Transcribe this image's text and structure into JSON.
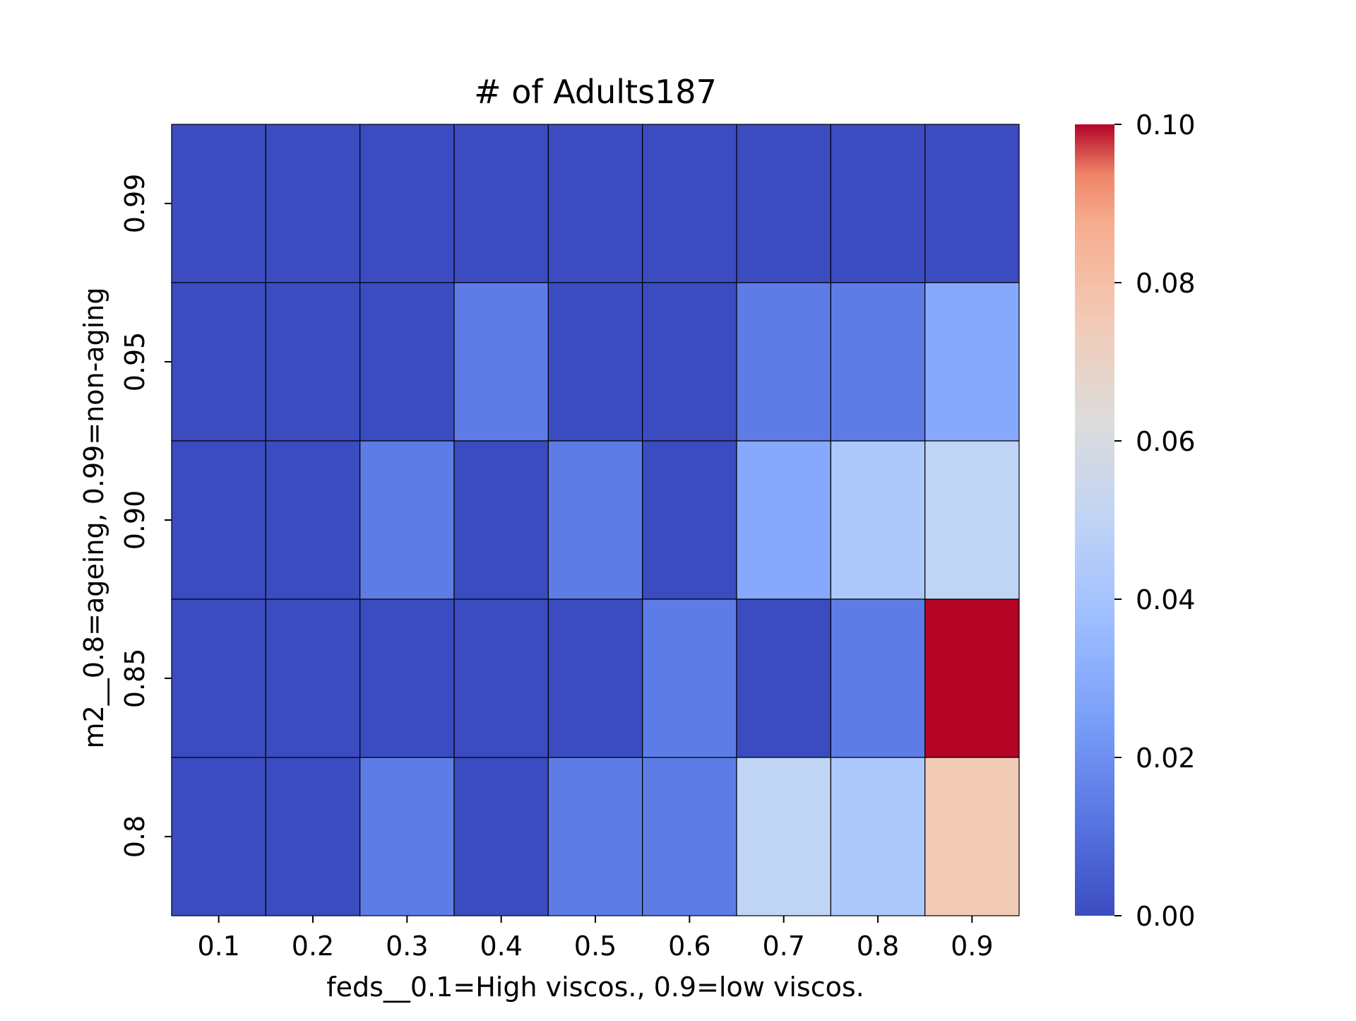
{
  "chart_data": {
    "type": "heatmap",
    "title": "# of Adults187",
    "xlabel": "feds__0.1=High viscos., 0.9=low viscos.",
    "ylabel": "m2__0.8=ageing, 0.99=non-aging",
    "x_categories": [
      "0.1",
      "0.2",
      "0.3",
      "0.4",
      "0.5",
      "0.6",
      "0.7",
      "0.8",
      "0.9"
    ],
    "y_categories": [
      "0.99",
      "0.95",
      "0.90",
      "0.85",
      "0.8"
    ],
    "values": [
      [
        0.0,
        0.0,
        0.0,
        0.0,
        0.0,
        0.0,
        0.0,
        0.0,
        0.0
      ],
      [
        0.0,
        0.0,
        0.0,
        0.014,
        0.0,
        0.0,
        0.014,
        0.014,
        0.029
      ],
      [
        0.0,
        0.0,
        0.014,
        0.0,
        0.014,
        0.0,
        0.029,
        0.043,
        0.05
      ],
      [
        0.0,
        0.0,
        0.0,
        0.0,
        0.0,
        0.014,
        0.0,
        0.014,
        0.1
      ],
      [
        0.0,
        0.0,
        0.014,
        0.0,
        0.014,
        0.014,
        0.05,
        0.043,
        0.075
      ]
    ],
    "colorbar": {
      "min": 0.0,
      "max": 0.1,
      "ticks": [
        "0.00",
        "0.02",
        "0.04",
        "0.06",
        "0.08",
        "0.10"
      ],
      "colormap": "coolwarm"
    },
    "grid": false,
    "legend": "colorbar-right"
  }
}
